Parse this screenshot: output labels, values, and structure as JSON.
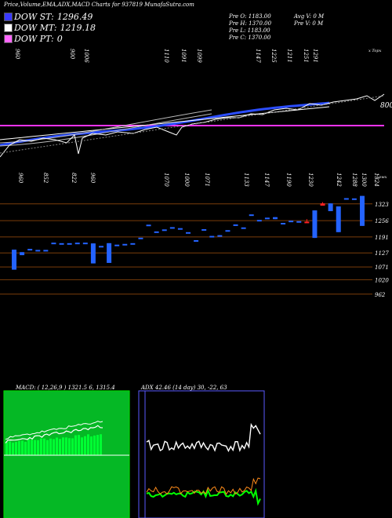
{
  "header": "Price,Volume,EMA,ADX,MACD Charts for 937819 MunafaSutra.com",
  "legend": [
    {
      "label": "DOW ST:",
      "value": "1296.49",
      "color": "#3a3aff"
    },
    {
      "label": "DOW MT:",
      "value": "1219.18",
      "color": "#ffffff"
    },
    {
      "label": "DOW PT:",
      "value": "0",
      "color": "#ff66ff"
    }
  ],
  "info": {
    "row1": [
      "Pre O: 1183.00",
      "Avg V: 0 M"
    ],
    "row2": [
      "Pre H: 1370.00",
      "Pre V: 0 M"
    ],
    "row3": [
      "Pre L: 1183.00"
    ],
    "row4": [
      "Pre C: 1370.00"
    ]
  },
  "top_labels": [
    "960",
    "900",
    "1006",
    "1110",
    "1091",
    "1099",
    "1147",
    "1225",
    "1211",
    "1251",
    "1291"
  ],
  "top_right_label": "x Topx",
  "price_right_label": "800",
  "bottom_labels": [
    "960",
    "852",
    "822",
    "960",
    "1070",
    "1000",
    "1071",
    "1133",
    "1147",
    "1190",
    "1230",
    "1242",
    "1288",
    "1300",
    "1324"
  ],
  "bottom_right_label": "Lowx",
  "chart_data": {
    "type": "candlestick",
    "price_axis_ticks": [
      1323,
      1256,
      1191,
      1127,
      1071,
      1020,
      962
    ],
    "ylim": [
      930,
      1360
    ],
    "candles": [
      {
        "o": 1140,
        "h": 1140,
        "l": 1060,
        "c": 1060,
        "color": "blue"
      },
      {
        "o": 1130,
        "h": 1130,
        "l": 1118,
        "c": 1118,
        "color": "blue"
      },
      {
        "o": 1143,
        "h": 1143,
        "l": 1143,
        "c": 1143,
        "color": "blue"
      },
      {
        "o": 1139,
        "h": 1139,
        "l": 1139,
        "c": 1139,
        "color": "blue"
      },
      {
        "o": 1139,
        "h": 1139,
        "l": 1139,
        "c": 1139,
        "color": "blue"
      },
      {
        "o": 1168,
        "h": 1168,
        "l": 1168,
        "c": 1168,
        "color": "blue"
      },
      {
        "o": 1166,
        "h": 1166,
        "l": 1166,
        "c": 1166,
        "color": "blue"
      },
      {
        "o": 1166,
        "h": 1166,
        "l": 1166,
        "c": 1166,
        "color": "blue"
      },
      {
        "o": 1168,
        "h": 1168,
        "l": 1168,
        "c": 1168,
        "color": "blue"
      },
      {
        "o": 1168,
        "h": 1168,
        "l": 1168,
        "c": 1168,
        "color": "blue"
      },
      {
        "o": 1165,
        "h": 1165,
        "l": 1085,
        "c": 1085,
        "color": "blue"
      },
      {
        "o": 1155,
        "h": 1155,
        "l": 1155,
        "c": 1155,
        "color": "blue"
      },
      {
        "o": 1166,
        "h": 1166,
        "l": 1087,
        "c": 1087,
        "color": "blue"
      },
      {
        "o": 1160,
        "h": 1160,
        "l": 1160,
        "c": 1160,
        "color": "blue"
      },
      {
        "o": 1163,
        "h": 1163,
        "l": 1163,
        "c": 1163,
        "color": "blue"
      },
      {
        "o": 1166,
        "h": 1166,
        "l": 1166,
        "c": 1166,
        "color": "blue"
      },
      {
        "o": 1188,
        "h": 1188,
        "l": 1188,
        "c": 1188,
        "color": "blue"
      },
      {
        "o": 1240,
        "h": 1240,
        "l": 1240,
        "c": 1240,
        "color": "blue"
      },
      {
        "o": 1213,
        "h": 1213,
        "l": 1213,
        "c": 1213,
        "color": "blue"
      },
      {
        "o": 1221,
        "h": 1221,
        "l": 1221,
        "c": 1221,
        "color": "blue"
      },
      {
        "o": 1230,
        "h": 1230,
        "l": 1230,
        "c": 1230,
        "color": "blue"
      },
      {
        "o": 1226,
        "h": 1226,
        "l": 1226,
        "c": 1226,
        "color": "blue"
      },
      {
        "o": 1210,
        "h": 1210,
        "l": 1210,
        "c": 1210,
        "color": "blue"
      },
      {
        "o": 1178,
        "h": 1178,
        "l": 1178,
        "c": 1178,
        "color": "blue"
      },
      {
        "o": 1222,
        "h": 1222,
        "l": 1222,
        "c": 1222,
        "color": "blue"
      },
      {
        "o": 1195,
        "h": 1195,
        "l": 1195,
        "c": 1195,
        "color": "blue"
      },
      {
        "o": 1198,
        "h": 1198,
        "l": 1194,
        "c": 1194,
        "color": "blue"
      },
      {
        "o": 1218,
        "h": 1218,
        "l": 1218,
        "c": 1218,
        "color": "blue"
      },
      {
        "o": 1241,
        "h": 1241,
        "l": 1241,
        "c": 1241,
        "color": "blue"
      },
      {
        "o": 1229,
        "h": 1229,
        "l": 1229,
        "c": 1229,
        "color": "blue"
      },
      {
        "o": 1281,
        "h": 1281,
        "l": 1281,
        "c": 1281,
        "color": "blue"
      },
      {
        "o": 1259,
        "h": 1259,
        "l": 1259,
        "c": 1259,
        "color": "blue"
      },
      {
        "o": 1268,
        "h": 1268,
        "l": 1268,
        "c": 1268,
        "color": "blue"
      },
      {
        "o": 1270,
        "h": 1270,
        "l": 1262,
        "c": 1262,
        "color": "blue"
      },
      {
        "o": 1247,
        "h": 1247,
        "l": 1247,
        "c": 1247,
        "color": "blue"
      },
      {
        "o": 1256,
        "h": 1256,
        "l": 1256,
        "c": 1256,
        "color": "blue"
      },
      {
        "o": 1254,
        "h": 1254,
        "l": 1254,
        "c": 1254,
        "color": "blue"
      },
      {
        "o": 1252,
        "h": 1262,
        "l": 1250,
        "c": 1250,
        "color": "red"
      },
      {
        "o": 1297,
        "h": 1297,
        "l": 1187,
        "c": 1187,
        "color": "blue"
      },
      {
        "o": 1316,
        "h": 1330,
        "l": 1316,
        "c": 1325,
        "color": "red"
      },
      {
        "o": 1325,
        "h": 1325,
        "l": 1294,
        "c": 1294,
        "color": "blue"
      },
      {
        "o": 1313,
        "h": 1313,
        "l": 1210,
        "c": 1210,
        "color": "blue"
      },
      {
        "o": 1346,
        "h": 1346,
        "l": 1346,
        "c": 1346,
        "color": "blue"
      },
      {
        "o": 1345,
        "h": 1345,
        "l": 1345,
        "c": 1345,
        "color": "blue"
      },
      {
        "o": 1355,
        "h": 1355,
        "l": 1235,
        "c": 1235,
        "color": "blue"
      }
    ]
  },
  "macd_title": "MACD: ( 12,26,9 ) 1321.5   6, 1315.4",
  "adx_title": "ADX   42.46   (14 day) 30, -22, 63"
}
